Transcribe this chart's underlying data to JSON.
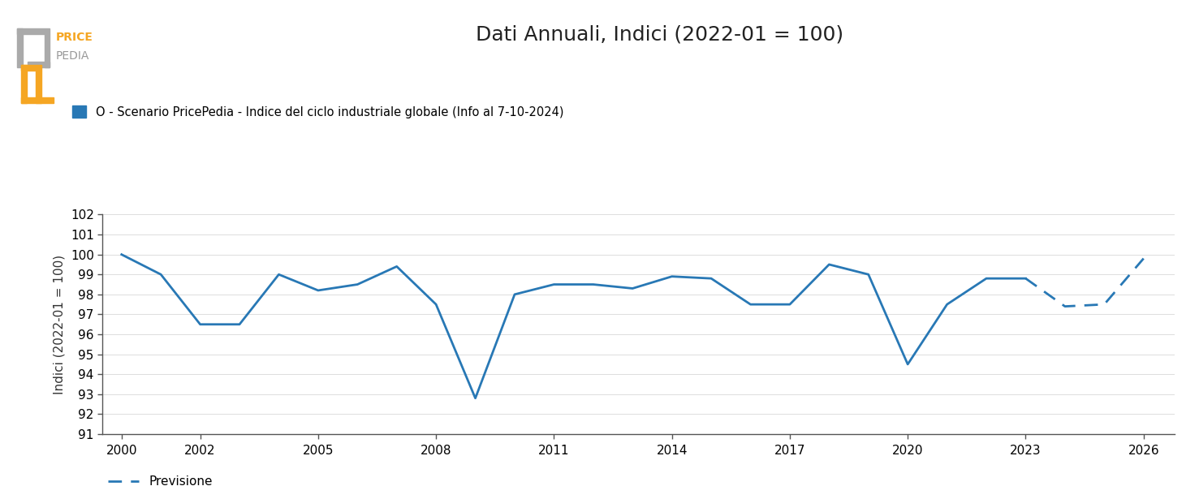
{
  "title": "Dati Annuali, Indici (2022-01 = 100)",
  "ylabel": "Indici (2022-01 = 100)",
  "line_color": "#2878b5",
  "legend_label": "O - Scenario PricePedia - Indice del ciclo industriale globale (Info al 7-10-2024)",
  "forecast_label": "Previsione",
  "solid_years": [
    2000,
    2001,
    2002,
    2003,
    2004,
    2005,
    2006,
    2007,
    2008,
    2009,
    2010,
    2011,
    2012,
    2013,
    2014,
    2015,
    2016,
    2017,
    2018,
    2019,
    2020,
    2021,
    2022,
    2023
  ],
  "solid_values": [
    100.0,
    99.0,
    96.5,
    96.5,
    99.0,
    98.2,
    98.5,
    99.4,
    97.5,
    92.8,
    98.0,
    98.5,
    98.5,
    98.3,
    98.9,
    98.8,
    97.5,
    97.5,
    99.5,
    99.0,
    94.5,
    97.5,
    98.8,
    98.8
  ],
  "dashed_years": [
    2023,
    2024,
    2025,
    2026
  ],
  "dashed_values": [
    98.8,
    97.4,
    97.5,
    99.8
  ],
  "xlim": [
    1999.5,
    2026.8
  ],
  "ylim": [
    91,
    102
  ],
  "yticks": [
    91,
    92,
    93,
    94,
    95,
    96,
    97,
    98,
    99,
    100,
    101,
    102
  ],
  "xticks": [
    2000,
    2002,
    2005,
    2008,
    2011,
    2014,
    2017,
    2020,
    2023,
    2026
  ],
  "background_color": "#ffffff",
  "logo_color_price": "#f5a623",
  "logo_color_pedia": "#999999",
  "logo_color_gray_bracket": "#aaaaaa"
}
